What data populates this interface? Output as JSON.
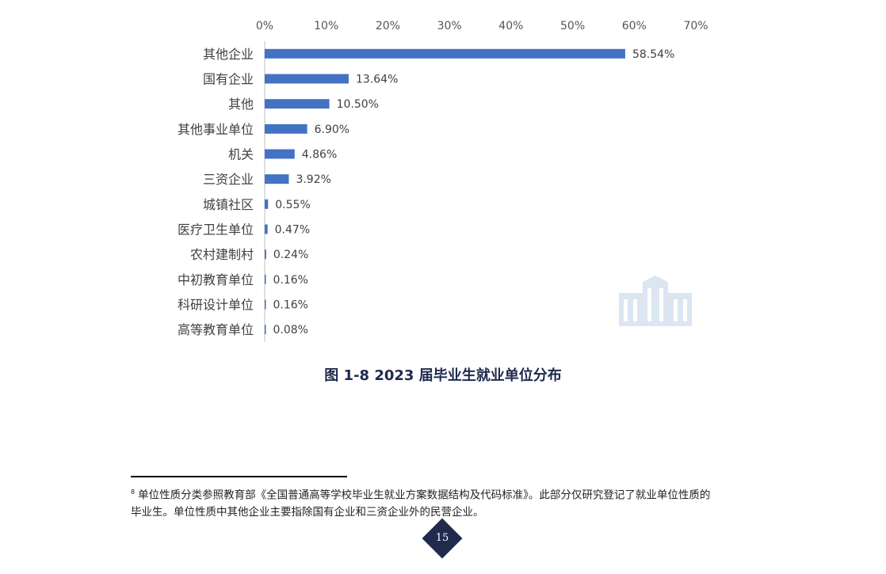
{
  "chart_data": {
    "type": "bar",
    "orientation": "horizontal",
    "categories": [
      "其他企业",
      "国有企业",
      "其他",
      "其他事业单位",
      "机关",
      "三资企业",
      "城镇社区",
      "医疗卫生单位",
      "农村建制村",
      "中初教育单位",
      "科研设计单位",
      "高等教育单位"
    ],
    "values": [
      58.54,
      13.64,
      10.5,
      6.9,
      4.86,
      3.92,
      0.55,
      0.47,
      0.24,
      0.16,
      0.16,
      0.08
    ],
    "data_labels": [
      "58.54%",
      "13.64%",
      "10.50%",
      "6.90%",
      "4.86%",
      "3.92%",
      "0.55%",
      "0.47%",
      "0.24%",
      "0.16%",
      "0.16%",
      "0.08%"
    ],
    "xticks": [
      "0%",
      "10%",
      "20%",
      "30%",
      "40%",
      "50%",
      "60%",
      "70%"
    ],
    "xlim": [
      0,
      70
    ],
    "xaxis_position": "top",
    "grid": false,
    "bar_color": "#4472c4",
    "title": "图 1-8 2023 届毕业生就业单位分布"
  },
  "footnote": {
    "marker": "8",
    "line1": "单位性质分类参照教育部《全国普通高等学校毕业生就业方案数据结构及代码标准》。此部分仅研究登记了就业单位性质的",
    "line2": "毕业生。单位性质中其他企业主要指除国有企业和三资企业外的民营企业。"
  },
  "page": {
    "number": "15",
    "badge_color": "#1f2a4d"
  },
  "watermark": {
    "icon": "building-icon",
    "color": "#dce6f2"
  }
}
